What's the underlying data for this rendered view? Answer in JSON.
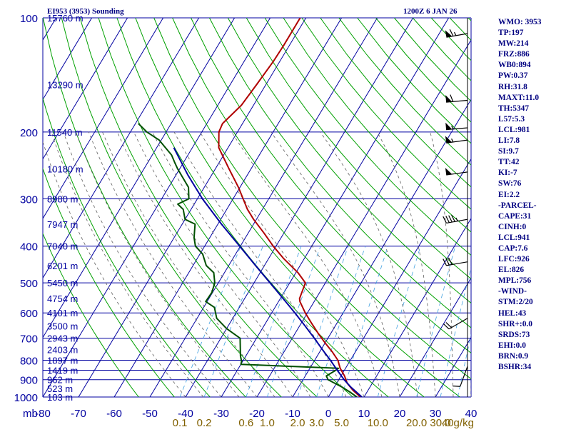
{
  "header": {
    "station": "EI953 (3953) Sounding",
    "time": "1200Z  6 JAN 26"
  },
  "indices": [
    "WMO: 3953",
    "TP:197",
    "MW:214",
    "FRZ:886",
    "WB0:894",
    "PW:0.37",
    "RH:31.8",
    "MAXT:11.0",
    "TH:5347",
    "L57:5.3",
    "LCL:981",
    "LI:7.8",
    "SI:9.7",
    "TT:42",
    "KI:-7",
    "SW:76",
    "EI:2.2",
    "-PARCEL-",
    "CAPE:31",
    "CINH:0",
    "LCL:941",
    "CAP:7.6",
    "LFC:926",
    "EL:826",
    "MPL:756",
    "-WIND-",
    "STM:2/20",
    "HEL:43",
    "SHR+:0.0",
    "SRDS:73",
    "EHI:0.0",
    "BRN:0.9",
    "BSHR:34"
  ],
  "colors": {
    "grid": "#0000a0",
    "dry_adiabat": "#00a000",
    "temperature": "#b00000",
    "dewpoint": "#005000",
    "parcel": "#0000a0",
    "moist_adiabat": "#606060",
    "mixing_ratio": "#40a0e0",
    "wind_barb": "#000000",
    "mixing_label": "#806000"
  },
  "chart_data": {
    "type": "skew-t",
    "x_unit_label": "mb",
    "xlim": [
      -80,
      40
    ],
    "ylim": [
      1000,
      100
    ],
    "y_scale": "log",
    "pressure_ticks": [
      100,
      200,
      300,
      400,
      500,
      600,
      700,
      800,
      900,
      1000
    ],
    "temperature_ticks": [
      -80,
      -70,
      -60,
      -50,
      -40,
      -30,
      -20,
      -10,
      0,
      10,
      20,
      30,
      40
    ],
    "mixing_ratio_labels": [
      "0.1",
      "0.2",
      "0.6",
      "1.0",
      "2.0",
      "3.0",
      "5.0",
      "10.0",
      "20.0",
      "30.0",
      "40g/kg"
    ],
    "height_labels": [
      {
        "p": 100,
        "label": "15760 m"
      },
      {
        "p": 150,
        "label": "13290 m"
      },
      {
        "p": 200,
        "label": "11540 m"
      },
      {
        "p": 250,
        "label": "10180 m"
      },
      {
        "p": 300,
        "label": "8980 m"
      },
      {
        "p": 350,
        "label": "7947 m"
      },
      {
        "p": 400,
        "label": "7040 m"
      },
      {
        "p": 450,
        "label": "6201 m"
      },
      {
        "p": 500,
        "label": "5450 m"
      },
      {
        "p": 550,
        "label": "4754 m"
      },
      {
        "p": 600,
        "label": "4101 m"
      },
      {
        "p": 650,
        "label": "3500 m"
      },
      {
        "p": 700,
        "label": "2943 m"
      },
      {
        "p": 750,
        "label": "2403 m"
      },
      {
        "p": 800,
        "label": "1897 m"
      },
      {
        "p": 850,
        "label": "1419 m"
      },
      {
        "p": 900,
        "label": "962 m"
      },
      {
        "p": 950,
        "label": "523 m"
      },
      {
        "p": 1000,
        "label": "103 m"
      }
    ],
    "series": [
      {
        "key": "temperature",
        "points": [
          [
            1000,
            9
          ],
          [
            960,
            5.8
          ],
          [
            920,
            3
          ],
          [
            880,
            1
          ],
          [
            840,
            -1.5
          ],
          [
            800,
            -3.5
          ],
          [
            760,
            -6.5
          ],
          [
            720,
            -10
          ],
          [
            680,
            -13.5
          ],
          [
            640,
            -17
          ],
          [
            600,
            -20.6
          ],
          [
            560,
            -24
          ],
          [
            550,
            -24.6
          ],
          [
            520,
            -25.2
          ],
          [
            500,
            -25.6
          ],
          [
            470,
            -29.4
          ],
          [
            430,
            -36
          ],
          [
            400,
            -40.8
          ],
          [
            370,
            -45.5
          ],
          [
            340,
            -50.8
          ],
          [
            320,
            -54.2
          ],
          [
            300,
            -57.2
          ],
          [
            280,
            -60.4
          ],
          [
            250,
            -66.2
          ],
          [
            220,
            -72.6
          ],
          [
            200,
            -75.2
          ],
          [
            190,
            -75.6
          ],
          [
            170,
            -73.4
          ],
          [
            150,
            -72.6
          ],
          [
            130,
            -71.8
          ],
          [
            118,
            -71.6
          ],
          [
            100,
            -71.6
          ]
        ]
      },
      {
        "key": "dewpoint",
        "points": [
          [
            1000,
            8
          ],
          [
            970,
            5.2
          ],
          [
            940,
            2
          ],
          [
            900,
            -3
          ],
          [
            880,
            -4.1
          ],
          [
            850,
            -2.4
          ],
          [
            840,
            -2
          ],
          [
            820,
            -30
          ],
          [
            805,
            -30.3
          ],
          [
            780,
            -31.5
          ],
          [
            700,
            -34.6
          ],
          [
            660,
            -40
          ],
          [
            620,
            -44.5
          ],
          [
            580,
            -47
          ],
          [
            560,
            -50.4
          ],
          [
            530,
            -50.2
          ],
          [
            500,
            -51
          ],
          [
            470,
            -53
          ],
          [
            450,
            -56.3
          ],
          [
            420,
            -59.2
          ],
          [
            400,
            -62.6
          ],
          [
            380,
            -64.4
          ],
          [
            350,
            -66.4
          ],
          [
            340,
            -70
          ],
          [
            320,
            -72.2
          ],
          [
            310,
            -74.6
          ],
          [
            300,
            -72.4
          ],
          [
            280,
            -74.4
          ],
          [
            250,
            -80.6
          ],
          [
            240,
            -82.6
          ],
          [
            230,
            -84.6
          ],
          [
            210,
            -90.6
          ],
          [
            200,
            -95.4
          ],
          [
            190,
            -99.2
          ]
        ]
      },
      {
        "key": "parcel",
        "points": [
          [
            1000,
            9.4
          ],
          [
            941,
            4.6
          ],
          [
            900,
            1.5
          ],
          [
            850,
            -2
          ],
          [
            800,
            -5.6
          ],
          [
            750,
            -9.6
          ],
          [
            700,
            -13.8
          ],
          [
            650,
            -18.4
          ],
          [
            600,
            -23.5
          ],
          [
            550,
            -29.2
          ],
          [
            500,
            -35.5
          ],
          [
            450,
            -42.5
          ],
          [
            400,
            -50.2
          ],
          [
            350,
            -59
          ],
          [
            300,
            -68.6
          ],
          [
            260,
            -76.6
          ],
          [
            220,
            -85.2
          ]
        ]
      }
    ],
    "wind_barbs": [
      {
        "p": 110,
        "dir": 260,
        "kt": 65
      },
      {
        "p": 165,
        "dir": 265,
        "kt": 60
      },
      {
        "p": 195,
        "dir": 265,
        "kt": 55
      },
      {
        "p": 210,
        "dir": 262,
        "kt": 55
      },
      {
        "p": 255,
        "dir": 262,
        "kt": 50
      },
      {
        "p": 340,
        "dir": 260,
        "kt": 45
      },
      {
        "p": 440,
        "dir": 260,
        "kt": 30
      },
      {
        "p": 620,
        "dir": 240,
        "kt": 20
      },
      {
        "p": 830,
        "dir": 200,
        "kt": 10
      }
    ]
  }
}
